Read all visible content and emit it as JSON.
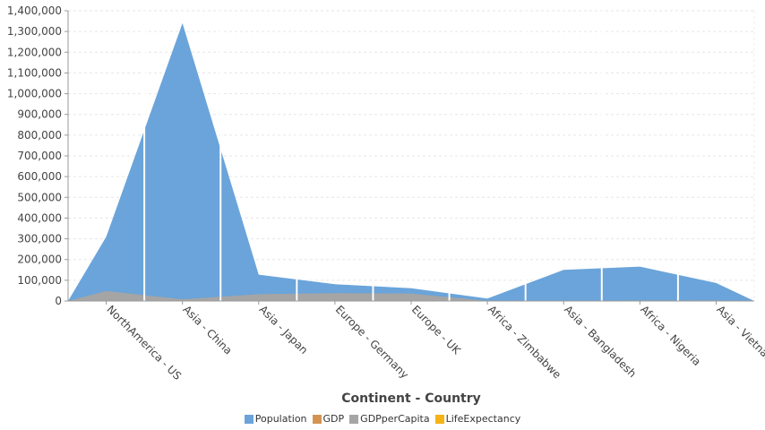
{
  "chart_data": {
    "type": "area",
    "xlabel": "Continent - Country",
    "ylabel": "",
    "ylim": [
      0,
      1400000
    ],
    "yticks": [
      0,
      100000,
      200000,
      300000,
      400000,
      500000,
      600000,
      700000,
      800000,
      900000,
      1000000,
      1100000,
      1200000,
      1300000,
      1400000
    ],
    "ytick_labels": [
      "0",
      "100,000",
      "200,000",
      "300,000",
      "400,000",
      "500,000",
      "600,000",
      "700,000",
      "800,000",
      "900,000",
      "1,000,000",
      "1,100,000",
      "1,200,000",
      "1,300,000",
      "1,400,000"
    ],
    "categories": [
      "NorthAmerica - US",
      "Asia - China",
      "Asia - Japan",
      "Europe - Germany",
      "Europe - UK",
      "Africa - Zimbabwe",
      "Asia - Bangladesh",
      "Africa - Nigeria",
      "Asia - Vietnam"
    ],
    "series": [
      {
        "name": "Population",
        "color": "#6aa4da",
        "values": [
          310000,
          1340000,
          127000,
          81000,
          62000,
          12000,
          150000,
          166000,
          87000
        ]
      },
      {
        "name": "GDP",
        "color": "#d39451",
        "values": [
          0,
          0,
          0,
          0,
          0,
          0,
          0,
          0,
          0
        ]
      },
      {
        "name": "GDPperCapita",
        "color": "#a5a5a5",
        "values": [
          48000,
          8000,
          33000,
          38000,
          36000,
          500,
          1700,
          2500,
          3200
        ]
      },
      {
        "name": "LifeExpectancy",
        "color": "#f4b316",
        "values": [
          78,
          74,
          83,
          80,
          80,
          50,
          70,
          52,
          75
        ]
      }
    ],
    "grid": true,
    "legend_position": "bottom"
  }
}
